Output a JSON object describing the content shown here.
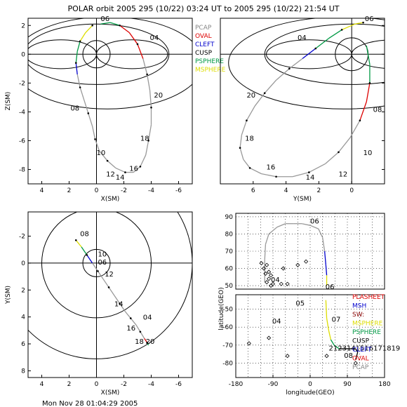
{
  "title": "POLAR orbit 2005 295 (10/22) 03:24 UT to 2005 295 (10/22) 21:54 UT",
  "footer": "Mon Nov 28 01:04:29 2005",
  "legend_top": [
    {
      "label": "PCAP",
      "color": "#888888"
    },
    {
      "label": "OVAL",
      "color": "#dd0000"
    },
    {
      "label": "CLEFT",
      "color": "#0000cc"
    },
    {
      "label": "CUSP",
      "color": "#000000"
    },
    {
      "label": "PSPHERE",
      "color": "#009944"
    },
    {
      "label": "MSPHERE",
      "color": "#dddd00"
    }
  ],
  "legend_bottom": [
    {
      "label": "PLASHEET",
      "color": "#dd0000"
    },
    {
      "label": "MSH",
      "color": "#0000cc"
    },
    {
      "label": "SW:",
      "color": "#880000"
    },
    {
      "label": "MSPHERE",
      "color": "#dddd00"
    },
    {
      "label": "PSPHERE",
      "color": "#009944"
    },
    {
      "label": "CUSP",
      "color": "#000000"
    },
    {
      "label": "CLEFT",
      "color": "#0000cc"
    },
    {
      "label": "OVAL",
      "color": "#dd0000"
    },
    {
      "label": "PCAP",
      "color": "#888888"
    }
  ],
  "chart_data": [
    {
      "type": "line",
      "xlabel": "X(SM)",
      "ylabel": "Z(SM)",
      "xlim": [
        5,
        -7
      ],
      "ylim": [
        -9,
        2.5
      ],
      "xticks": [
        4,
        2,
        0,
        -2,
        -4,
        -6
      ],
      "yticks": [
        2,
        0,
        -2,
        -4,
        -6,
        -8
      ],
      "orbit": {
        "x": [
          0.3,
          0.8,
          1.2,
          1.4,
          1.5,
          1.4,
          1.2,
          0.9,
          0.6,
          0.3,
          0.1,
          -0.2,
          -0.8,
          -1.4,
          -2.1,
          -2.7,
          -3.2,
          -3.6,
          -3.8,
          -4.0,
          -4.0,
          -3.9,
          -3.7,
          -3.4,
          -3.0,
          -2.4,
          -1.7,
          -1.0,
          -0.3
        ],
        "z": [
          2.0,
          1.5,
          0.9,
          0.2,
          -0.6,
          -1.4,
          -2.3,
          -3.2,
          -4.1,
          -5.0,
          -5.9,
          -6.7,
          -7.4,
          -7.9,
          -8.2,
          -8.2,
          -7.8,
          -7.0,
          -6.0,
          -4.9,
          -3.7,
          -2.5,
          -1.4,
          -0.3,
          0.7,
          1.5,
          2.0,
          2.2,
          2.1
        ]
      },
      "labels": [
        {
          "text": "06",
          "x": -0.3,
          "z": 2.3
        },
        {
          "text": "04",
          "x": -3.9,
          "z": 1.0
        },
        {
          "text": "20",
          "x": -4.2,
          "z": -3.0
        },
        {
          "text": "08",
          "x": 1.9,
          "z": -3.9
        },
        {
          "text": "18",
          "x": -3.2,
          "z": -6.0
        },
        {
          "text": "10",
          "x": 0.0,
          "z": -7.0
        },
        {
          "text": "16",
          "x": -2.4,
          "z": -8.1
        },
        {
          "text": "12",
          "x": -0.7,
          "z": -8.5
        },
        {
          "text": "14",
          "x": -1.4,
          "z": -8.7
        }
      ]
    },
    {
      "type": "line",
      "xlabel": "Y(SM)",
      "ylabel": "",
      "xlim": [
        8,
        -2
      ],
      "ylim": [
        -9,
        2.5
      ],
      "xticks": [
        6,
        4,
        2,
        0
      ],
      "yticks": [
        2,
        0,
        -2,
        -4,
        -6,
        -8
      ],
      "orbit": {
        "y": [
          -0.7,
          -0.2,
          0.6,
          1.4,
          2.2,
          3.0,
          3.8,
          4.6,
          5.3,
          5.9,
          6.4,
          6.7,
          6.8,
          6.6,
          6.2,
          5.5,
          4.6,
          3.6,
          2.6,
          1.6,
          0.8,
          0.1,
          -0.5,
          -0.9,
          -1.1,
          -1.1,
          -0.9
        ],
        "z": [
          2.2,
          2.1,
          1.7,
          1.1,
          0.4,
          -0.3,
          -1.0,
          -1.8,
          -2.7,
          -3.6,
          -4.6,
          -5.6,
          -6.5,
          -7.3,
          -7.9,
          -8.3,
          -8.5,
          -8.5,
          -8.2,
          -7.6,
          -6.8,
          -5.8,
          -4.6,
          -3.3,
          -2.0,
          -0.7,
          0.6
        ]
      },
      "labels": [
        {
          "text": "06",
          "y": -0.8,
          "z": 2.3
        },
        {
          "text": "04",
          "y": 3.3,
          "z": 1.0
        },
        {
          "text": "20",
          "y": 6.4,
          "z": -3.0
        },
        {
          "text": "08",
          "y": -1.3,
          "z": -4.0
        },
        {
          "text": "18",
          "y": 6.5,
          "z": -6.0
        },
        {
          "text": "10",
          "y": -0.7,
          "z": -7.0
        },
        {
          "text": "16",
          "y": 5.2,
          "z": -8.0
        },
        {
          "text": "14",
          "y": 2.8,
          "z": -8.7
        },
        {
          "text": "12",
          "y": 0.8,
          "z": -8.5
        }
      ]
    },
    {
      "type": "line",
      "xlabel": "X(SM)",
      "ylabel": "Y(SM)",
      "xlim": [
        5,
        -7
      ],
      "ylim": [
        8.5,
        -3.8
      ],
      "xticks": [
        4,
        2,
        0,
        -2,
        -4,
        -6
      ],
      "yticks": [
        -2,
        0,
        2,
        4,
        6,
        8
      ],
      "orbit": {
        "x": [
          1.5,
          1.1,
          0.7,
          0.3,
          -0.1,
          -0.5,
          -0.9,
          -1.3,
          -1.7,
          -2.1,
          -2.5,
          -2.9,
          -3.2,
          -3.5,
          -3.7,
          -3.8
        ],
        "y": [
          -1.7,
          -1.2,
          -0.6,
          0.0,
          0.6,
          1.2,
          1.8,
          2.4,
          3.0,
          3.6,
          4.1,
          4.6,
          5.1,
          5.6,
          5.9,
          6.1
        ]
      },
      "labels": [
        {
          "text": "08",
          "x": 1.2,
          "y": -2.0
        },
        {
          "text": "10",
          "x": -0.1,
          "y": -0.5
        },
        {
          "text": "06",
          "x": -0.1,
          "y": 0.1
        },
        {
          "text": "12",
          "x": -0.6,
          "y": 1.0
        },
        {
          "text": "14",
          "x": -1.3,
          "y": 3.2
        },
        {
          "text": "04",
          "x": -3.4,
          "y": 4.2
        },
        {
          "text": "16",
          "x": -2.2,
          "y": 5.0
        },
        {
          "text": "18",
          "x": -2.8,
          "y": 6.0
        },
        {
          "text": "20",
          "x": -3.6,
          "y": 6.0
        }
      ]
    },
    {
      "type": "scatter",
      "xlabel": "longitude(GEO)",
      "ylabel": "latitude(GEO)",
      "north": {
        "xlim": [
          -180,
          180
        ],
        "ylim": [
          48,
          92
        ],
        "yticks": [
          50,
          60,
          70,
          80,
          90
        ],
        "track_lon": [
          -110,
          -110,
          -108,
          -100,
          -80,
          -60,
          -40,
          -20,
          0,
          20,
          30,
          35,
          38,
          40,
          40
        ],
        "track_lat": [
          52,
          65,
          74,
          80,
          84,
          86,
          86,
          86,
          85,
          83,
          78,
          70,
          62,
          56,
          50
        ],
        "diamonds": [
          [
            -118,
            63
          ],
          [
            -112,
            60
          ],
          [
            -105,
            62
          ],
          [
            -100,
            58
          ],
          [
            -95,
            56
          ],
          [
            -100,
            54
          ],
          [
            -90,
            51
          ],
          [
            -95,
            50
          ],
          [
            -105,
            52
          ],
          [
            -70,
            51
          ],
          [
            -55,
            51
          ],
          [
            -30,
            62
          ],
          [
            -10,
            64
          ],
          [
            -65,
            60
          ],
          [
            -108,
            57
          ]
        ],
        "labels": [
          {
            "text": "06",
            "lon": 0,
            "lat": 86
          },
          {
            "text": "04",
            "lon": -95,
            "lat": 52
          },
          {
            "text": "06",
            "lon": 37,
            "lat": 48
          }
        ]
      },
      "south": {
        "xlim": [
          -180,
          180
        ],
        "ylim": [
          -88,
          -42
        ],
        "yticks": [
          -50,
          -60,
          -70,
          -80
        ],
        "xticks": [
          -180,
          -90,
          0,
          90,
          180
        ],
        "track_lon": [
          38,
          40,
          45,
          50,
          58,
          70,
          85,
          100,
          110,
          115,
          110
        ],
        "track_lat": [
          -45,
          -55,
          -62,
          -67,
          -70,
          -72,
          -72,
          -72,
          -72,
          -74,
          -78
        ],
        "diamonds": [
          [
            -148,
            -69
          ],
          [
            -100,
            -66
          ],
          [
            -55,
            -76
          ],
          [
            40,
            -76
          ],
          [
            110,
            -80
          ]
        ],
        "labels": [
          {
            "text": "05",
            "lon": -35,
            "lat": -48
          },
          {
            "text": "04",
            "lon": -92,
            "lat": -58
          },
          {
            "text": "07",
            "lon": 52,
            "lat": -57
          },
          {
            "text": "08",
            "lon": 82,
            "lat": -77
          },
          {
            "text": "2123141516171819",
            "lon": 45,
            "lat": -73
          }
        ]
      }
    }
  ]
}
